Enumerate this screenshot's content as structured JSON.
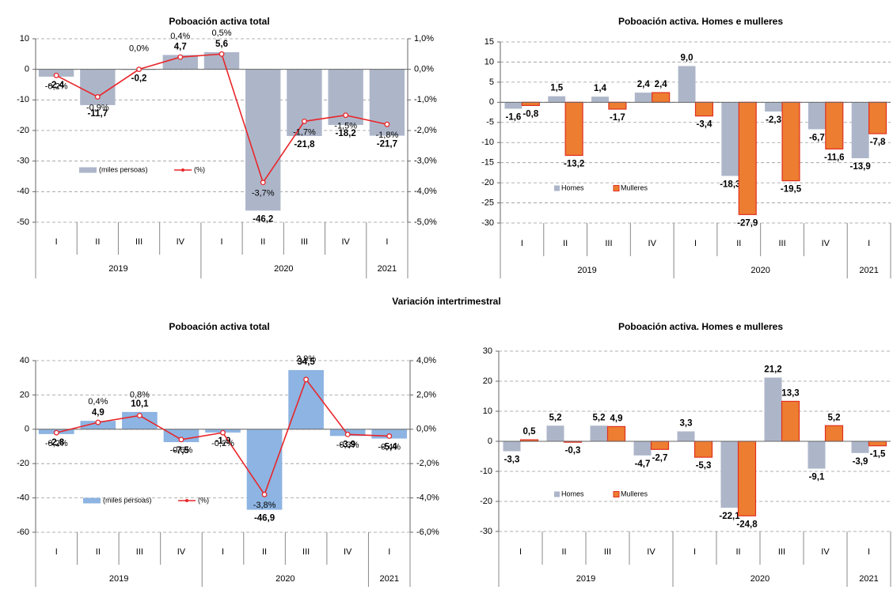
{
  "heading": "Variación intertrimestral",
  "chart_data": [
    {
      "type": "bar",
      "title": "Poboación activa total",
      "groups": [
        {
          "name": "2019",
          "categories": [
            "I",
            "II",
            "III",
            "IV"
          ]
        },
        {
          "name": "2020",
          "categories": [
            "I",
            "II",
            "III",
            "IV"
          ]
        },
        {
          "name": "2021",
          "categories": [
            "I"
          ]
        }
      ],
      "series": [
        {
          "name": "(miles persoas)",
          "color": "#adb6c9",
          "values": [
            -2.4,
            -11.7,
            -0.2,
            4.7,
            5.6,
            -46.2,
            -21.8,
            -18.2,
            -21.7
          ],
          "value_labels": [
            "-2,4",
            "-11,7",
            "-0,2",
            "4,7",
            "5,6",
            "-46,2",
            "-21,8",
            "-18,2",
            "-21,7"
          ]
        },
        {
          "name": "(%)",
          "type": "line",
          "axis": "y2",
          "color": "#e8262a",
          "values": [
            -0.2,
            -0.9,
            0.0,
            0.4,
            0.5,
            -3.7,
            -1.7,
            -1.5,
            -1.8
          ],
          "value_labels": [
            "-0,2%",
            "-0,9%",
            "0,0%",
            "0,4%",
            "0,5%",
            "-3,7%",
            "-1,7%",
            "-1,5%",
            "-1,8%"
          ]
        }
      ],
      "ylim": [
        -50,
        10
      ],
      "yticks": [
        10,
        0,
        -10,
        -20,
        -30,
        -40,
        -50
      ],
      "y2lim": [
        -5,
        1
      ],
      "y2ticks": [
        {
          "value": 1,
          "label": "1,0%"
        },
        {
          "value": 0,
          "label": "0,0%"
        },
        {
          "value": -1,
          "label": "-1,0%"
        },
        {
          "value": -2,
          "label": "-2,0%"
        },
        {
          "value": -3,
          "label": "-3,0%"
        },
        {
          "value": -4,
          "label": "-4,0%"
        },
        {
          "value": -5,
          "label": "-5,0%"
        }
      ],
      "grid": true
    },
    {
      "type": "bar",
      "title": "Poboación activa. Homes e mulleres",
      "groups": [
        {
          "name": "2019",
          "categories": [
            "I",
            "II",
            "III",
            "IV"
          ]
        },
        {
          "name": "2020",
          "categories": [
            "I",
            "II",
            "III",
            "IV"
          ]
        },
        {
          "name": "2021",
          "categories": [
            "I"
          ]
        }
      ],
      "series": [
        {
          "name": "Homes",
          "color": "#adb6c9",
          "values": [
            -1.6,
            1.5,
            1.4,
            2.4,
            9.0,
            -18.3,
            -2.3,
            -6.7,
            -13.9
          ],
          "value_labels": [
            "-1,6",
            "1,5",
            "1,4",
            "2,4",
            "9,0",
            "-18,3",
            "-2,3",
            "-6,7",
            "-13,9"
          ]
        },
        {
          "name": "Mulleres",
          "color": "#ed7d31",
          "values": [
            -0.8,
            -13.2,
            -1.7,
            2.4,
            -3.4,
            -27.9,
            -19.5,
            -11.6,
            -7.8
          ],
          "value_labels": [
            "-0,8",
            "-13,2",
            "-1,7",
            "2,4",
            "-3,4",
            "-27,9",
            "-19,5",
            "-11,6",
            "-7,8"
          ]
        }
      ],
      "ylim": [
        -30,
        15
      ],
      "yticks": [
        15,
        10,
        5,
        0,
        -5,
        -10,
        -15,
        -20,
        -25,
        -30
      ],
      "grid": true
    },
    {
      "type": "bar",
      "title": "Poboación activa total",
      "groups": [
        {
          "name": "2019",
          "categories": [
            "I",
            "II",
            "III",
            "IV"
          ]
        },
        {
          "name": "2020",
          "categories": [
            "I",
            "II",
            "III",
            "IV"
          ]
        },
        {
          "name": "2021",
          "categories": [
            "I"
          ]
        }
      ],
      "series": [
        {
          "name": "(miles persoas)",
          "color": "#8db4e2",
          "values": [
            -2.8,
            4.9,
            10.1,
            -7.5,
            -1.9,
            -46.9,
            34.5,
            -3.9,
            -5.4
          ],
          "value_labels": [
            "-2,8",
            "4,9",
            "10,1",
            "-7,5",
            "-1,9",
            "-46,9",
            "34,5",
            "-3,9",
            "-5,4"
          ]
        },
        {
          "name": "(%)",
          "type": "line",
          "axis": "y2",
          "color": "#e8262a",
          "values": [
            -0.2,
            0.4,
            0.8,
            -0.6,
            -0.2,
            -3.8,
            2.9,
            -0.3,
            -0.4
          ],
          "value_labels": [
            "-0,2%",
            "0,4%",
            "0,8%",
            "-0,6%",
            "-0,2%",
            "-3,8%",
            "2,9%",
            "-0,3%",
            "-0,4%"
          ]
        }
      ],
      "ylim": [
        -60,
        40
      ],
      "yticks": [
        40,
        20,
        0,
        -20,
        -40,
        -60
      ],
      "y2lim": [
        -6,
        4
      ],
      "y2ticks": [
        {
          "value": 4,
          "label": "4,0%"
        },
        {
          "value": 2,
          "label": "2,0%"
        },
        {
          "value": 0,
          "label": "0,0%"
        },
        {
          "value": -2,
          "label": "-2,0%"
        },
        {
          "value": -4,
          "label": "-4,0%"
        },
        {
          "value": -6,
          "label": "-6,0%"
        }
      ],
      "grid": true
    },
    {
      "type": "bar",
      "title": "Poboación activa. Homes e mulleres",
      "groups": [
        {
          "name": "2019",
          "categories": [
            "I",
            "II",
            "III",
            "IV"
          ]
        },
        {
          "name": "2020",
          "categories": [
            "I",
            "II",
            "III",
            "IV"
          ]
        },
        {
          "name": "2021",
          "categories": [
            "I"
          ]
        }
      ],
      "series": [
        {
          "name": "Homes",
          "color": "#adb6c9",
          "values": [
            -3.3,
            5.2,
            5.2,
            -4.7,
            3.3,
            -22.1,
            21.2,
            -9.1,
            -3.9
          ],
          "value_labels": [
            "-3,3",
            "5,2",
            "5,2",
            "-4,7",
            "3,3",
            "-22,1",
            "21,2",
            "-9,1",
            "-3,9"
          ]
        },
        {
          "name": "Mulleres",
          "color": "#ed7d31",
          "values": [
            0.5,
            -0.3,
            4.9,
            -2.7,
            -5.3,
            -24.8,
            13.3,
            5.2,
            -1.5
          ],
          "value_labels": [
            "0,5",
            "-0,3",
            "4,9",
            "-2,7",
            "-5,3",
            "-24,8",
            "13,3",
            "5,2",
            "-1,5"
          ]
        }
      ],
      "ylim": [
        -30,
        30
      ],
      "yticks": [
        30,
        20,
        10,
        0,
        -10,
        -20,
        -30
      ],
      "grid": true
    }
  ]
}
